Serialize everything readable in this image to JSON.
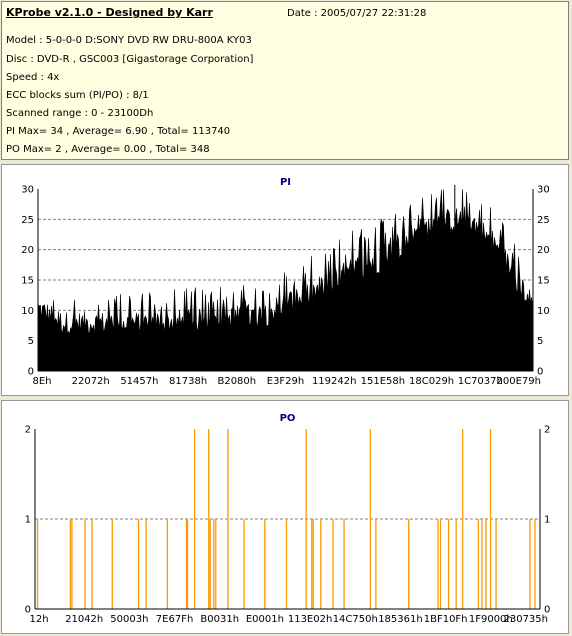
{
  "header": {
    "title": "KProbe v2.1.0 - Designed by Karr",
    "date": "Date : 2005/07/27 22:31:28",
    "lines": [
      "Model : 5-0-0-0 D:SONY    DVD RW DRU-800A  KY03",
      "Disc : DVD-R , GSC003 [Gigastorage Corporation]",
      "Speed : 4x",
      "ECC blocks sum (PI/PO) : 8/1",
      "Scanned range : 0 - 23100Dh",
      "PI Max= 34 , Average= 6.90 , Total= 113740",
      "PO Max= 2 , Average= 0.00 , Total= 348"
    ]
  },
  "chart_data": [
    {
      "type": "area",
      "title": "PI",
      "ylim": [
        0,
        30
      ],
      "yticks": [
        0,
        5,
        10,
        15,
        20,
        25,
        30
      ],
      "xtick_labels": [
        "8Eh",
        "22072h",
        "51457h",
        "81738h",
        "B2080h",
        "E3F29h",
        "119242h",
        "151E58h",
        "18C029h",
        "1C7037h",
        "200E79h"
      ],
      "color": "#000000",
      "grid": true,
      "profile": [
        {
          "x": 0,
          "base": 8,
          "peak": 16
        },
        {
          "x": 0.05,
          "base": 6,
          "peak": 13
        },
        {
          "x": 0.2,
          "base": 6,
          "peak": 13
        },
        {
          "x": 0.35,
          "base": 6,
          "peak": 14
        },
        {
          "x": 0.45,
          "base": 7,
          "peak": 15
        },
        {
          "x": 0.55,
          "base": 10,
          "peak": 19
        },
        {
          "x": 0.65,
          "base": 14,
          "peak": 24
        },
        {
          "x": 0.73,
          "base": 18,
          "peak": 28
        },
        {
          "x": 0.8,
          "base": 22,
          "peak": 30
        },
        {
          "x": 0.87,
          "base": 23,
          "peak": 31
        },
        {
          "x": 0.93,
          "base": 18,
          "peak": 26
        },
        {
          "x": 1,
          "base": 9,
          "peak": 16
        }
      ],
      "spike": {
        "x": 0.842,
        "value": 34
      }
    },
    {
      "type": "bar",
      "title": "PO",
      "ylim": [
        0,
        2
      ],
      "yticks": [
        0,
        1,
        2
      ],
      "xtick_labels": [
        "12h",
        "21042h",
        "50003h",
        "7E67Fh",
        "B0031h",
        "E0001h",
        "113E02h",
        "14C750h",
        "185361h",
        "1BF10Fh",
        "1F9000h",
        "230735h"
      ],
      "color": "#ff9900",
      "grid": true,
      "bars_value2": [
        0.316,
        0.344,
        0.382,
        0.537,
        0.664,
        0.847,
        0.902
      ],
      "bars_value1": [
        0.005,
        0.07,
        0.073,
        0.099,
        0.113,
        0.153,
        0.205,
        0.22,
        0.262,
        0.302,
        0.3,
        0.347,
        0.354,
        0.358,
        0.414,
        0.455,
        0.498,
        0.548,
        0.551,
        0.566,
        0.59,
        0.612,
        0.675,
        0.74,
        0.798,
        0.803,
        0.819,
        0.834,
        0.878,
        0.885,
        0.893,
        0.913,
        0.98,
        0.99
      ]
    }
  ]
}
